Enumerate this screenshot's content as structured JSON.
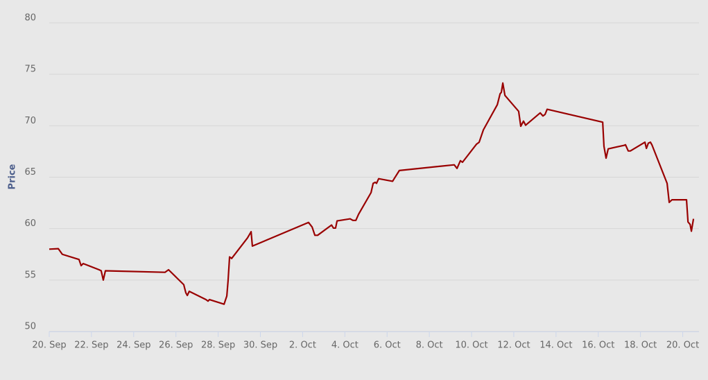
{
  "chart_data": {
    "type": "line",
    "y_label": "Price",
    "color": "#990000",
    "grid": true,
    "x": [
      0,
      0.43,
      0.62,
      1.41,
      1.51,
      1.61,
      2.36,
      2.46,
      2.56,
      2.66,
      5.48,
      5.65,
      6.37,
      6.47,
      6.54,
      6.63,
      7.42,
      7.52,
      7.59,
      8.28,
      8.41,
      8.47,
      8.54,
      8.64,
      9.39,
      9.56,
      9.62,
      12.28,
      12.45,
      12.58,
      12.71,
      13.37,
      13.46,
      13.56,
      13.63,
      14.25,
      14.38,
      14.52,
      14.65,
      15.24,
      15.34,
      15.44,
      15.5,
      15.6,
      16.26,
      16.35,
      16.58,
      19.18,
      19.31,
      19.47,
      19.57,
      20.23,
      20.36,
      20.56,
      21.22,
      21.35,
      21.41,
      21.48,
      21.58,
      22.23,
      22.33,
      22.46,
      22.56,
      23.25,
      23.38,
      23.48,
      23.58,
      26.21,
      26.27,
      26.37,
      26.47,
      27.23,
      27.29,
      27.42,
      27.52,
      28.21,
      28.28,
      28.37,
      28.47,
      28.54,
      29.26,
      29.36,
      29.49,
      30.18,
      30.25,
      30.35,
      30.41,
      30.51
    ],
    "values": [
      58.0,
      58.05,
      57.5,
      57.0,
      56.4,
      56.6,
      56.0,
      55.9,
      55.0,
      55.9,
      55.75,
      56.0,
      54.55,
      53.75,
      53.5,
      53.9,
      53.1,
      52.95,
      53.1,
      52.65,
      53.45,
      54.95,
      57.25,
      57.1,
      59.1,
      59.7,
      58.3,
      60.6,
      60.15,
      59.35,
      59.35,
      60.35,
      60.05,
      60.05,
      60.75,
      60.95,
      60.8,
      60.8,
      61.4,
      63.5,
      64.4,
      64.5,
      64.4,
      64.85,
      64.6,
      64.9,
      65.65,
      66.2,
      65.85,
      66.6,
      66.45,
      68.2,
      68.4,
      69.6,
      72.05,
      73.1,
      73.25,
      74.15,
      72.95,
      71.4,
      69.95,
      70.45,
      70.05,
      71.25,
      70.95,
      71.1,
      71.6,
      70.35,
      68.0,
      66.85,
      67.75,
      68.1,
      68.15,
      67.55,
      67.55,
      68.4,
      67.8,
      68.3,
      68.4,
      68.15,
      64.4,
      62.55,
      62.8,
      62.8,
      60.65,
      60.4,
      59.75,
      60.95
    ],
    "xlim": [
      0,
      30.77
    ],
    "xticks": [
      {
        "value": 0,
        "label": "20. Sep"
      },
      {
        "value": 2,
        "label": "22. Sep"
      },
      {
        "value": 4,
        "label": "24. Sep"
      },
      {
        "value": 6,
        "label": "26. Sep"
      },
      {
        "value": 8,
        "label": "28. Sep"
      },
      {
        "value": 10,
        "label": "30. Sep"
      },
      {
        "value": 12,
        "label": "2. Oct"
      },
      {
        "value": 14,
        "label": "4. Oct"
      },
      {
        "value": 16,
        "label": "6. Oct"
      },
      {
        "value": 18,
        "label": "8. Oct"
      },
      {
        "value": 20,
        "label": "10. Oct"
      },
      {
        "value": 22,
        "label": "12. Oct"
      },
      {
        "value": 24,
        "label": "14. Oct"
      },
      {
        "value": 26,
        "label": "16. Oct"
      },
      {
        "value": 28,
        "label": "18. Oct"
      },
      {
        "value": 30,
        "label": "20. Oct"
      }
    ],
    "ylim": [
      50,
      80
    ],
    "yticks": [
      50,
      55,
      60,
      65,
      70,
      75,
      80
    ]
  }
}
